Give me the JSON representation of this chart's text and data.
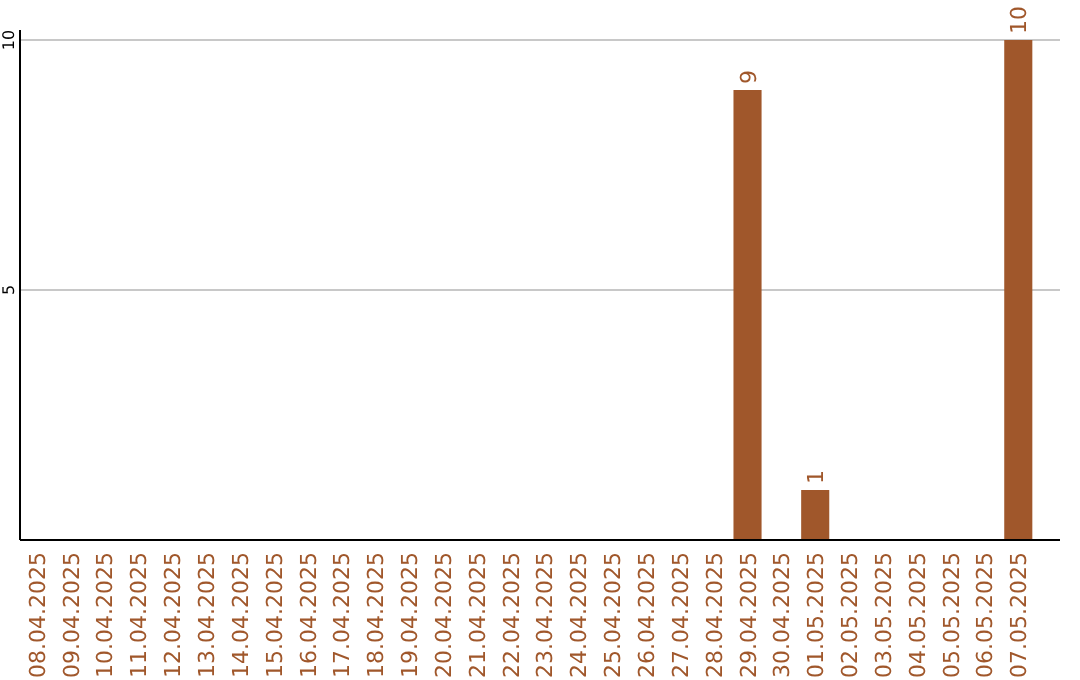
{
  "chart_data": {
    "type": "bar",
    "categories": [
      "08.04.2025",
      "09.04.2025",
      "10.04.2025",
      "11.04.2025",
      "12.04.2025",
      "13.04.2025",
      "14.04.2025",
      "15.04.2025",
      "16.04.2025",
      "17.04.2025",
      "18.04.2025",
      "19.04.2025",
      "20.04.2025",
      "21.04.2025",
      "22.04.2025",
      "23.04.2025",
      "24.04.2025",
      "25.04.2025",
      "26.04.2025",
      "27.04.2025",
      "28.04.2025",
      "29.04.2025",
      "30.04.2025",
      "01.05.2025",
      "02.05.2025",
      "03.05.2025",
      "04.05.2025",
      "05.05.2025",
      "06.05.2025",
      "07.05.2025"
    ],
    "values": [
      0,
      0,
      0,
      0,
      0,
      0,
      0,
      0,
      0,
      0,
      0,
      0,
      0,
      0,
      0,
      0,
      0,
      0,
      0,
      0,
      0,
      9,
      0,
      1,
      0,
      0,
      0,
      0,
      0,
      10
    ],
    "value_labels": [
      null,
      null,
      null,
      null,
      null,
      null,
      null,
      null,
      null,
      null,
      null,
      null,
      null,
      null,
      null,
      null,
      null,
      null,
      null,
      null,
      null,
      "9",
      null,
      "1",
      null,
      null,
      null,
      null,
      null,
      "10"
    ],
    "color": "#a0572b",
    "ylim": [
      0,
      10
    ],
    "yticks": [
      5,
      10
    ],
    "grid": "y"
  }
}
